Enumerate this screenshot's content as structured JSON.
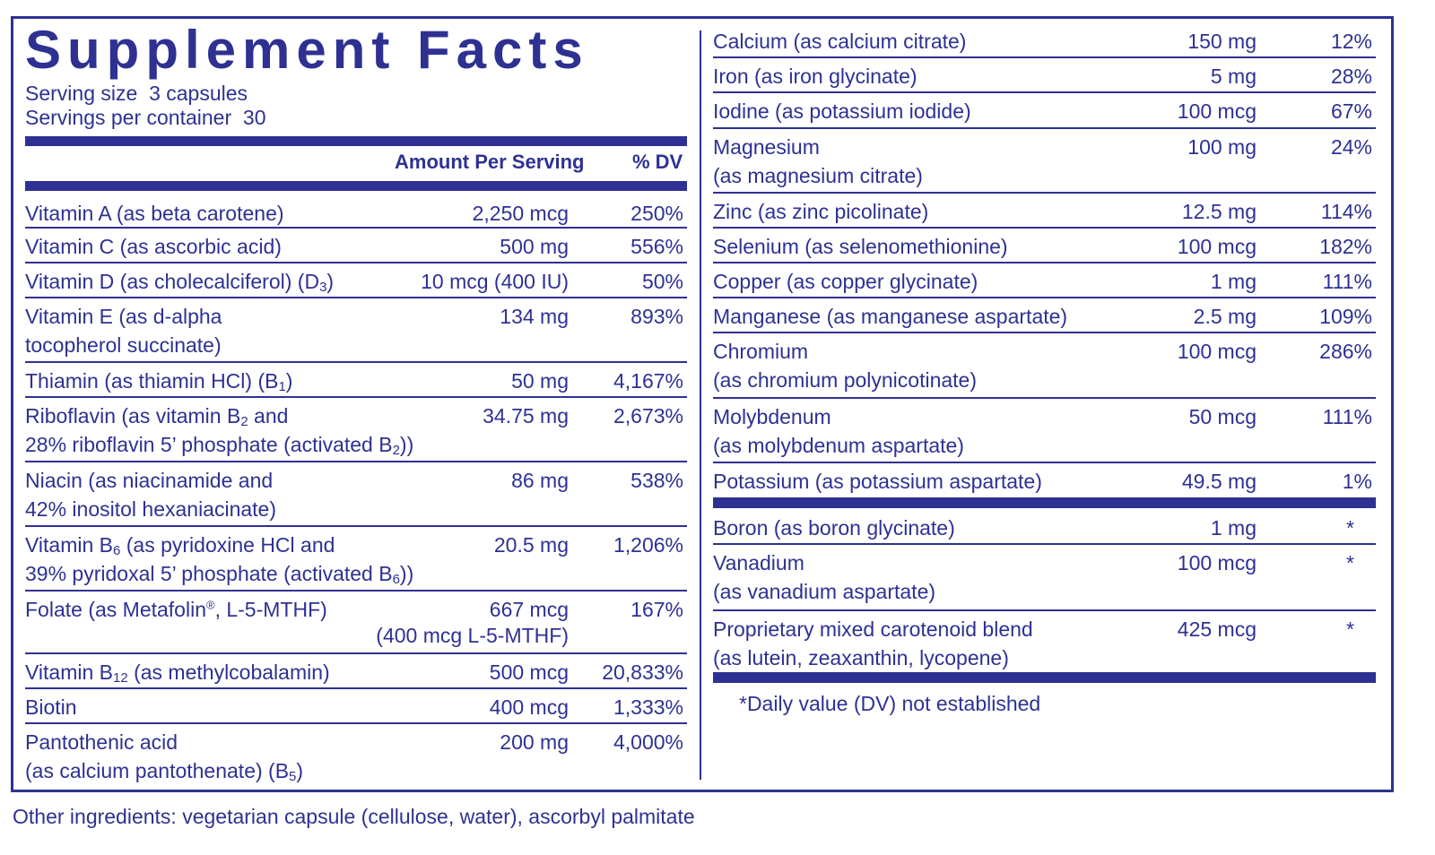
{
  "title": "Supplement Facts",
  "serving_size_label": "Serving size",
  "serving_size_value": "3 capsules",
  "servings_label": "Servings per container",
  "servings_value": "30",
  "col_amount": "Amount Per Serving",
  "col_dv": "% DV",
  "left": {
    "vitA": {
      "l1": "Vitamin A (as beta carotene)",
      "amt": "2,250 mcg",
      "dv": "250%"
    },
    "vitC": {
      "l1": "Vitamin C (as ascorbic acid)",
      "amt": "500 mg",
      "dv": "556%"
    },
    "vitD": {
      "l1a": "Vitamin D  (as cholecalciferol) (D",
      "sub": "3",
      "l1b": ")",
      "amt": "10 mcg (400 IU)",
      "dv": "50%"
    },
    "vitE": {
      "l1": "Vitamin E (as d-alpha",
      "l2": "tocopherol succinate)",
      "amt": "134 mg",
      "dv": "893%"
    },
    "thiamin": {
      "l1a": "Thiamin (as thiamin HCl) (B",
      "sub": "1",
      "l1b": ")",
      "amt": "50 mg",
      "dv": "4,167%"
    },
    "ribo": {
      "l1a": "Riboflavin (as vitamin B",
      "sub1": "2",
      "l1b": " and",
      "l2a": "28% riboflavin 5’ phosphate (activated B",
      "sub2": "2",
      "l2b": "))",
      "amt": "34.75 mg",
      "dv": "2,673%"
    },
    "niacin": {
      "l1": "Niacin (as niacinamide and",
      "l2": "42% inositol hexaniacinate)",
      "amt": "86 mg",
      "dv": "538%"
    },
    "b6": {
      "l1a": "Vitamin B",
      "sub1": "6",
      "l1b": " (as pyridoxine HCl and",
      "l2a": "39% pyridoxal 5’ phosphate (activated B",
      "sub2": "6",
      "l2b": "))",
      "amt": "20.5 mg",
      "dv": "1,206%"
    },
    "folate": {
      "l1a": "Folate (as Metafolin",
      "reg": "®",
      "l1b": ", L-5-MTHF)",
      "amt": "667 mcg",
      "amt2": "(400 mcg L-5-MTHF)",
      "dv": "167%"
    },
    "b12": {
      "l1a": "Vitamin B",
      "sub": "12",
      "l1b": " (as methylcobalamin)",
      "amt": "500 mcg",
      "dv": "20,833%"
    },
    "biotin": {
      "l1": "Biotin",
      "amt": "400 mcg",
      "dv": "1,333%"
    },
    "panto": {
      "l1": "Pantothenic acid",
      "l2a": "(as calcium pantothenate) (B",
      "sub": "5",
      "l2b": ")",
      "amt": "200 mg",
      "dv": "4,000%"
    }
  },
  "right": {
    "calcium": {
      "l1": "Calcium (as calcium citrate)",
      "amt": "150 mg",
      "dv": "12%"
    },
    "iron": {
      "l1": "Iron (as iron glycinate)",
      "amt": "5 mg",
      "dv": "28%"
    },
    "iodine": {
      "l1": "Iodine (as potassium iodide)",
      "amt": "100 mcg",
      "dv": "67%"
    },
    "magnesium": {
      "l1": "Magnesium",
      "l2": "(as magnesium citrate)",
      "amt": "100 mg",
      "dv": "24%"
    },
    "zinc": {
      "l1": "Zinc (as zinc picolinate)",
      "amt": "12.5 mg",
      "dv": "114%"
    },
    "selenium": {
      "l1": "Selenium (as selenomethionine)",
      "amt": "100 mcg",
      "dv": "182%"
    },
    "copper": {
      "l1": "Copper (as copper glycinate)",
      "amt": "1 mg",
      "dv": "111%"
    },
    "manganese": {
      "l1": "Manganese (as manganese aspartate)",
      "amt": "2.5 mg",
      "dv": "109%"
    },
    "chromium": {
      "l1": "Chromium",
      "l2": "(as chromium polynicotinate)",
      "amt": "100 mcg",
      "dv": "286%"
    },
    "molybdenum": {
      "l1": "Molybdenum",
      "l2": "(as molybdenum aspartate)",
      "amt": "50 mcg",
      "dv": "111%"
    },
    "potassium": {
      "l1": "Potassium (as potassium aspartate)",
      "amt": "49.5 mg",
      "dv": "1%"
    },
    "boron": {
      "l1": "Boron (as boron glycinate)",
      "amt": "1 mg",
      "dv": "*"
    },
    "vanadium": {
      "l1": "Vanadium",
      "l2": "(as vanadium aspartate)",
      "amt": "100 mcg",
      "dv": "*"
    },
    "carotenoid": {
      "l1": "Proprietary mixed carotenoid blend",
      "l2": "(as lutein, zeaxanthin, lycopene)",
      "amt": "425 mcg",
      "dv": "*"
    }
  },
  "footnote": "*Daily value (DV) not established",
  "other_ingredients": "Other ingredients: vegetarian capsule (cellulose, water), ascorbyl palmitate",
  "colors": {
    "ink": "#2e3192",
    "background": "#ffffff"
  }
}
